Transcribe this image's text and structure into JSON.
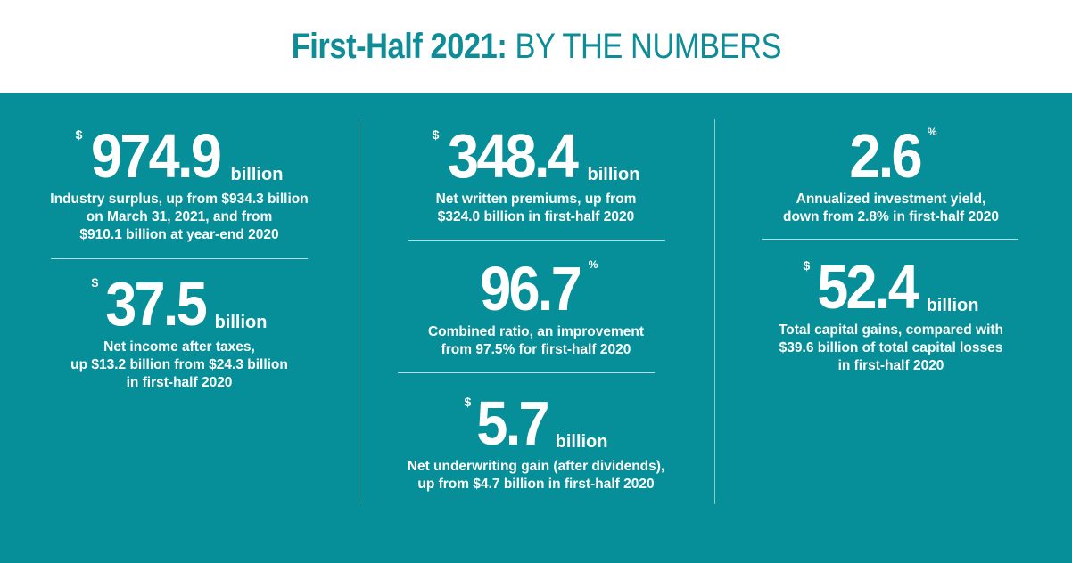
{
  "header": {
    "title_bold": "First-Half 2021:",
    "title_light": "BY THE NUMBERS"
  },
  "colors": {
    "teal": "#068f98",
    "title_teal": "#0e8d98",
    "white": "#ffffff"
  },
  "stats": {
    "surplus": {
      "currency": "$",
      "value": "974.9",
      "unit": "billion",
      "lines": [
        "Industry surplus, up from $934.3 billion",
        "on March 31, 2021, and from",
        "$910.1 billion at year-end 2020"
      ]
    },
    "net_income": {
      "currency": "$",
      "value": "37.5",
      "unit": "billion",
      "lines": [
        "Net income after taxes,",
        "up $13.2 billion from $24.3 billion",
        "in first-half 2020"
      ]
    },
    "premiums": {
      "currency": "$",
      "value": "348.4",
      "unit": "billion",
      "lines": [
        "Net written premiums, up from",
        "$324.0 billion in first-half 2020"
      ]
    },
    "combined_ratio": {
      "value": "96.7",
      "unit": "%",
      "lines": [
        "Combined ratio, an improvement",
        "from 97.5% for first-half 2020"
      ]
    },
    "underwriting": {
      "currency": "$",
      "value": "5.7",
      "unit": "billion",
      "lines": [
        "Net underwriting gain (after dividends),",
        "up from $4.7 billion in first-half 2020"
      ]
    },
    "yield": {
      "value": "2.6",
      "unit": "%",
      "lines": [
        "Annualized investment yield,",
        "down from 2.8% in first-half 2020"
      ]
    },
    "capital_gains": {
      "currency": "$",
      "value": "52.4",
      "unit": "billion",
      "lines": [
        "Total capital gains, compared with",
        "$39.6 billion of total capital losses",
        "in first-half 2020"
      ]
    }
  }
}
